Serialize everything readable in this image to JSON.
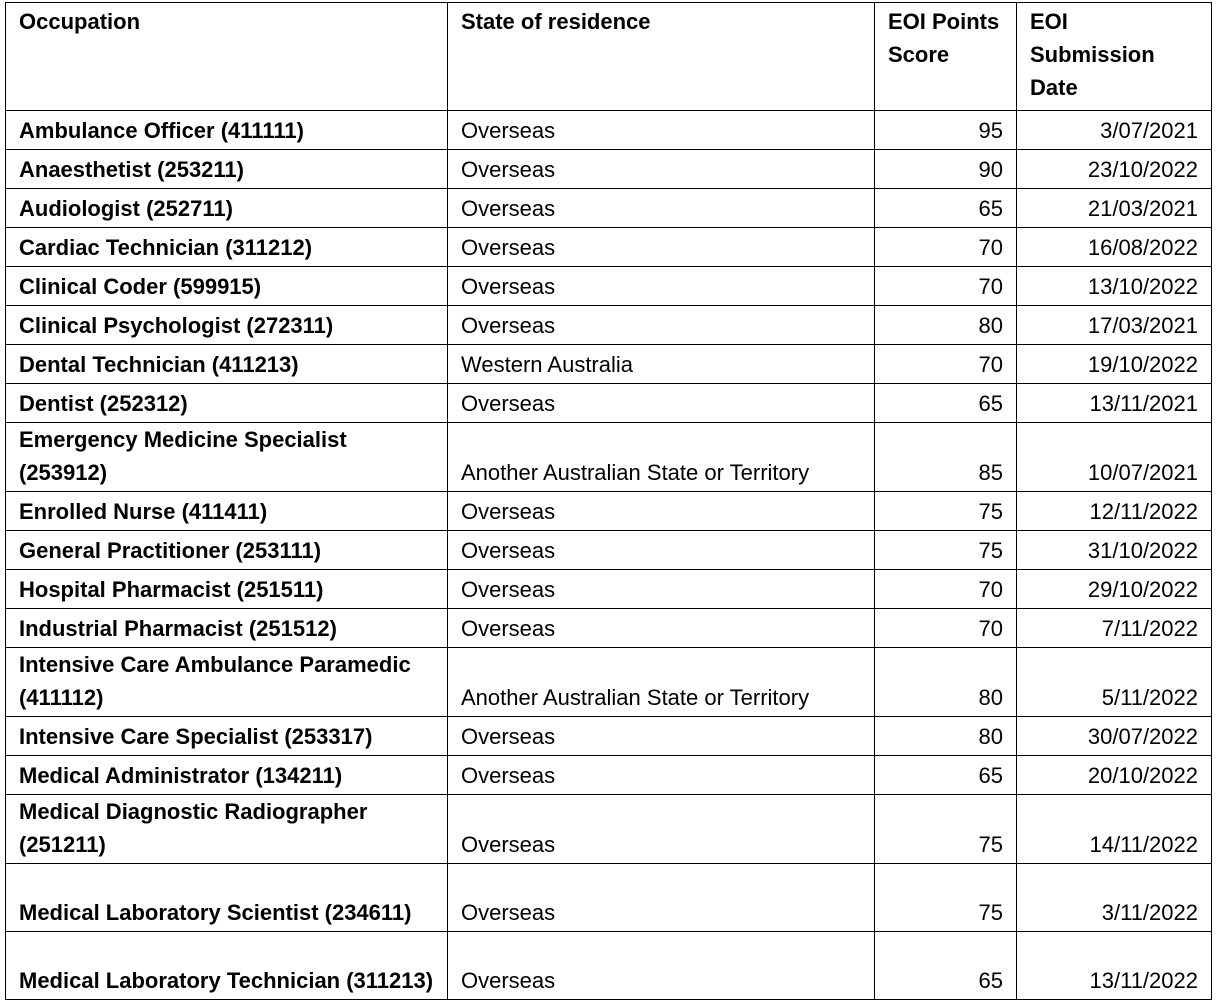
{
  "table": {
    "header": [
      "Occupation",
      "State of residence",
      "EOI Points Score",
      "EOI Submission Date"
    ],
    "rows": [
      [
        "Ambulance Officer (411111)",
        "Overseas",
        95,
        "3/07/2021"
      ],
      [
        "Anaesthetist (253211)",
        "Overseas",
        90,
        "23/10/2022"
      ],
      [
        "Audiologist (252711)",
        "Overseas",
        65,
        "21/03/2021"
      ],
      [
        "Cardiac Technician (311212)",
        "Overseas",
        70,
        "16/08/2022"
      ],
      [
        "Clinical Coder (599915)",
        "Overseas",
        70,
        "13/10/2022"
      ],
      [
        "Clinical Psychologist (272311)",
        "Overseas",
        80,
        "17/03/2021"
      ],
      [
        "Dental Technician (411213)",
        "Western Australia",
        70,
        "19/10/2022"
      ],
      [
        "Dentist (252312)",
        "Overseas",
        65,
        "13/11/2021"
      ],
      [
        "Emergency Medicine Specialist (253912)",
        "Another Australian State or Territory",
        85,
        "10/07/2021"
      ],
      [
        "Enrolled Nurse (411411)",
        "Overseas",
        75,
        "12/11/2022"
      ],
      [
        "General Practitioner (253111)",
        "Overseas",
        75,
        "31/10/2022"
      ],
      [
        "Hospital Pharmacist (251511)",
        "Overseas",
        70,
        "29/10/2022"
      ],
      [
        "Industrial Pharmacist (251512)",
        "Overseas",
        70,
        "7/11/2022"
      ],
      [
        "Intensive Care Ambulance Paramedic (411112)",
        "Another Australian State or Territory",
        80,
        "5/11/2022"
      ],
      [
        "Intensive Care Specialist (253317)",
        "Overseas",
        80,
        "30/07/2022"
      ],
      [
        "Medical Administrator (134211)",
        "Overseas",
        65,
        "20/10/2022"
      ],
      [
        "Medical Diagnostic Radiographer (251211)",
        "Overseas",
        75,
        "14/11/2022"
      ],
      [
        "Medical Laboratory Scientist (234611)",
        "Overseas",
        75,
        "3/11/2022"
      ],
      [
        "Medical Laboratory Technician (311213)",
        "Overseas",
        65,
        "13/11/2022"
      ]
    ]
  }
}
